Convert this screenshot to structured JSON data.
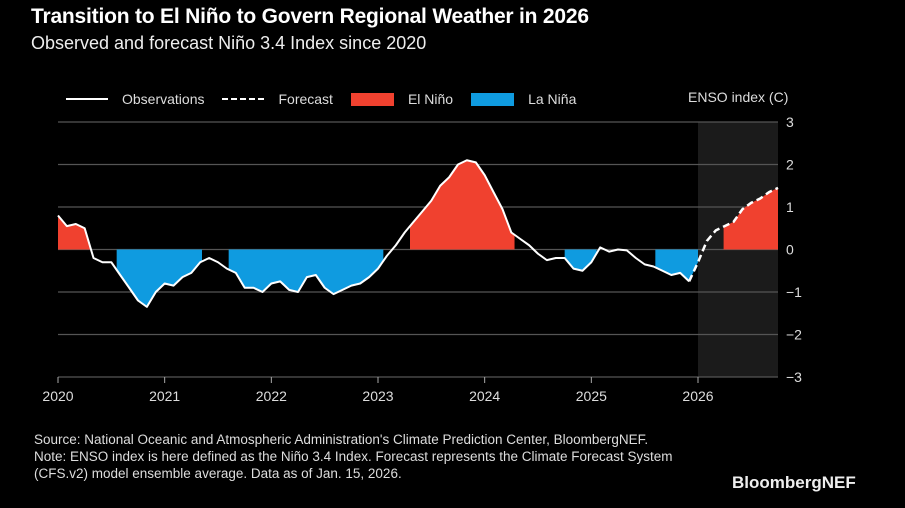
{
  "header": {
    "title": "Transition to El Niño to Govern Regional Weather in 2026",
    "subtitle": "Observed and forecast Niño 3.4 Index since 2020"
  },
  "legend": {
    "observations": "Observations",
    "forecast": "Forecast",
    "el_nino": "El Niño",
    "la_nina": "La Niña"
  },
  "colors": {
    "el_nino": "#f0412f",
    "la_nina": "#0f9be0",
    "line": "#ffffff",
    "grid": "#555555",
    "forecast_bg": "#1b1b1b"
  },
  "footer": {
    "source": "Source: National Oceanic and Atmospheric Administration's Climate Prediction Center, BloombergNEF.",
    "note": "Note: ENSO index is here defined as the Niño 3.4 Index. Forecast represents the Climate Forecast System (CFS.v2) model ensemble average. Data as of Jan. 15, 2026."
  },
  "brand": "BloombergNEF",
  "chart_data": {
    "type": "area",
    "title": "Transition to El Niño to Govern Regional Weather in 2026",
    "subtitle": "Observed and forecast Niño 3.4 Index since 2020",
    "xlabel": "",
    "ylabel": "ENSO index (C)",
    "xlim": [
      2020,
      2026.75
    ],
    "ylim": [
      -3,
      3
    ],
    "x_ticks": [
      "2020",
      "2021",
      "2022",
      "2023",
      "2024",
      "2025",
      "2026"
    ],
    "x_tick_values": [
      2020,
      2021,
      2022,
      2023,
      2024,
      2025,
      2026
    ],
    "y_ticks": [
      "3",
      "2",
      "1",
      "0",
      "−1",
      "−2",
      "−3"
    ],
    "y_tick_values": [
      3,
      2,
      1,
      0,
      -1,
      -2,
      -3
    ],
    "grid": true,
    "y_axis_side": "right",
    "legend_position": "top",
    "forecast_start": 2026,
    "series": [
      {
        "name": "Observations",
        "style": "solid",
        "x": [
          2020.0,
          2020.083,
          2020.167,
          2020.25,
          2020.333,
          2020.417,
          2020.5,
          2020.583,
          2020.667,
          2020.75,
          2020.833,
          2020.917,
          2021.0,
          2021.083,
          2021.167,
          2021.25,
          2021.333,
          2021.417,
          2021.5,
          2021.583,
          2021.667,
          2021.75,
          2021.833,
          2021.917,
          2022.0,
          2022.083,
          2022.167,
          2022.25,
          2022.333,
          2022.417,
          2022.5,
          2022.583,
          2022.667,
          2022.75,
          2022.833,
          2022.917,
          2023.0,
          2023.083,
          2023.167,
          2023.25,
          2023.333,
          2023.417,
          2023.5,
          2023.583,
          2023.667,
          2023.75,
          2023.833,
          2023.917,
          2024.0,
          2024.083,
          2024.167,
          2024.25,
          2024.333,
          2024.417,
          2024.5,
          2024.583,
          2024.667,
          2024.75,
          2024.833,
          2024.917,
          2025.0,
          2025.083,
          2025.167,
          2025.25,
          2025.333,
          2025.417,
          2025.5,
          2025.583,
          2025.667,
          2025.75,
          2025.833,
          2025.917
        ],
        "values": [
          0.8,
          0.55,
          0.6,
          0.5,
          -0.2,
          -0.3,
          -0.3,
          -0.6,
          -0.9,
          -1.2,
          -1.35,
          -1.0,
          -0.8,
          -0.85,
          -0.65,
          -0.55,
          -0.3,
          -0.2,
          -0.3,
          -0.45,
          -0.55,
          -0.9,
          -0.9,
          -1.0,
          -0.8,
          -0.75,
          -0.95,
          -1.0,
          -0.65,
          -0.6,
          -0.9,
          -1.05,
          -0.95,
          -0.85,
          -0.8,
          -0.65,
          -0.45,
          -0.15,
          0.1,
          0.4,
          0.65,
          0.9,
          1.15,
          1.5,
          1.7,
          2.0,
          2.1,
          2.05,
          1.75,
          1.35,
          0.95,
          0.4,
          0.25,
          0.1,
          -0.1,
          -0.25,
          -0.2,
          -0.2,
          -0.45,
          -0.5,
          -0.3,
          0.05,
          -0.05,
          0.0,
          -0.02,
          -0.2,
          -0.35,
          -0.4,
          -0.5,
          -0.6,
          -0.55,
          -0.75
        ]
      },
      {
        "name": "Forecast",
        "style": "dashed",
        "x": [
          2025.917,
          2026.0,
          2026.083,
          2026.167,
          2026.25,
          2026.333,
          2026.417,
          2026.5,
          2026.583,
          2026.667,
          2026.75
        ],
        "values": [
          -0.75,
          -0.3,
          0.2,
          0.45,
          0.55,
          0.65,
          0.95,
          1.1,
          1.2,
          1.35,
          1.45
        ]
      }
    ],
    "episodes": [
      {
        "type": "El Niño",
        "start": 2020.0,
        "end": 2020.3
      },
      {
        "type": "La Niña",
        "start": 2020.55,
        "end": 2021.35
      },
      {
        "type": "La Niña",
        "start": 2021.6,
        "end": 2023.05
      },
      {
        "type": "El Niño",
        "start": 2023.3,
        "end": 2024.28
      },
      {
        "type": "La Niña",
        "start": 2024.75,
        "end": 2025.05
      },
      {
        "type": "La Niña",
        "start": 2025.6,
        "end": 2026.0
      },
      {
        "type": "El Niño",
        "start": 2026.24,
        "end": 2026.75
      }
    ]
  }
}
